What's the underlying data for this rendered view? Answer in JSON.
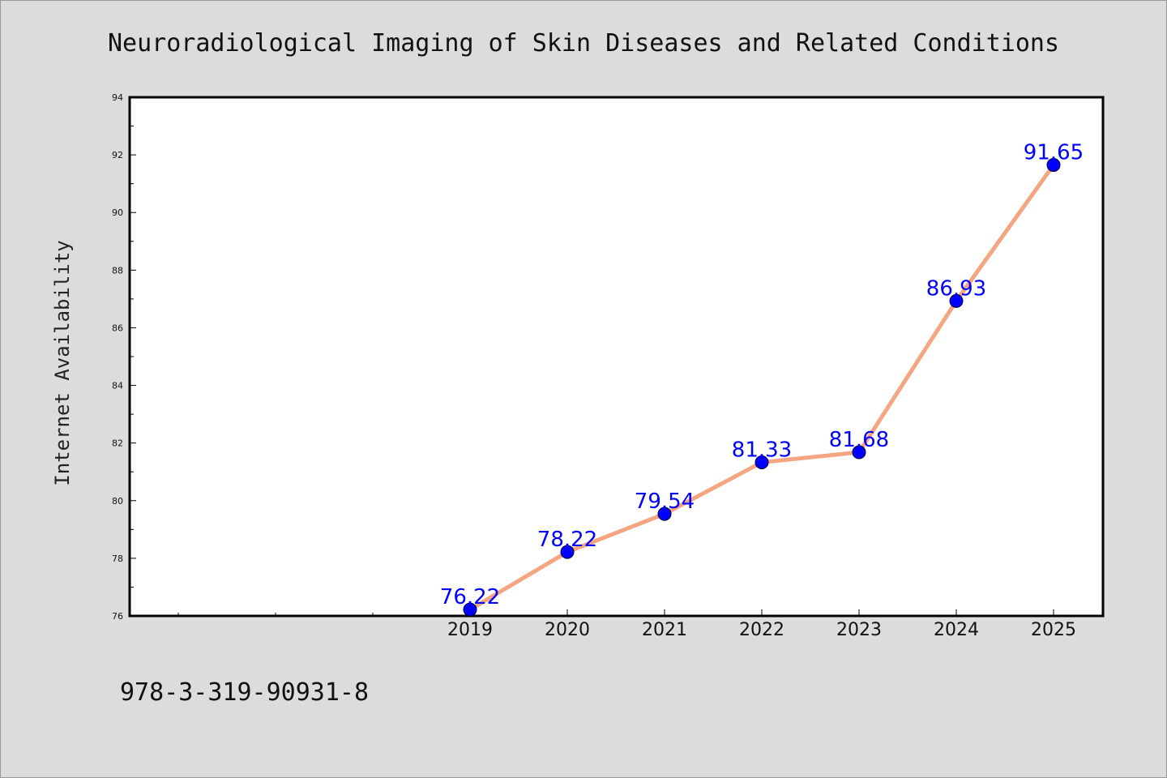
{
  "chart_data": {
    "type": "line",
    "title": "Neuroradiological Imaging of Skin Diseases and Related Conditions",
    "xlabel": "",
    "ylabel": "Internet Availability",
    "categories": [
      "2019",
      "2020",
      "2021",
      "2022",
      "2023",
      "2024",
      "2025"
    ],
    "values": [
      76.22,
      78.22,
      79.54,
      81.33,
      81.68,
      86.93,
      91.65
    ],
    "data_labels": [
      "76.22",
      "78.22",
      "79.54",
      "81.33",
      "81.68",
      "86.93",
      "91.65"
    ],
    "ylim": [
      76,
      94
    ],
    "yticks": [
      "76",
      "78",
      "80",
      "82",
      "84",
      "86",
      "88",
      "90",
      "92",
      "94"
    ],
    "grid": false,
    "line_color": "#f4a582",
    "marker_color": "#0000ff",
    "label_color": "#0000ff",
    "background_color": "#dcdcdc",
    "plot_background_color": "#ffffff"
  },
  "footer": {
    "isbn": "978-3-319-90931-8"
  }
}
